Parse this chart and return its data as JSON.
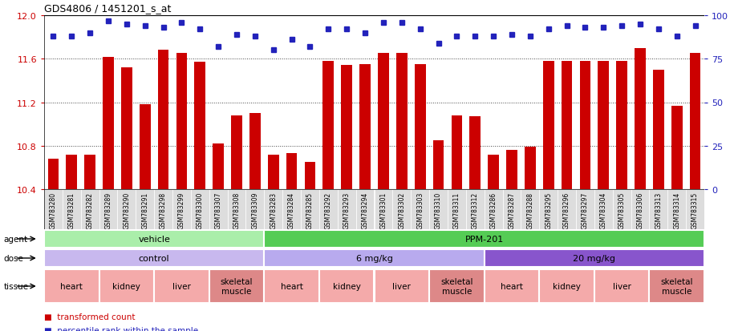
{
  "title": "GDS4806 / 1451201_s_at",
  "ylim_left": [
    10.4,
    12.0
  ],
  "ylim_right": [
    0,
    100
  ],
  "yticks_left": [
    10.4,
    10.8,
    11.2,
    11.6,
    12.0
  ],
  "yticks_right": [
    0,
    25,
    50,
    75,
    100
  ],
  "bar_color": "#cc0000",
  "dot_color": "#2222bb",
  "sample_ids": [
    "GSM783280",
    "GSM783281",
    "GSM783282",
    "GSM783289",
    "GSM783290",
    "GSM783291",
    "GSM783298",
    "GSM783299",
    "GSM783300",
    "GSM783307",
    "GSM783308",
    "GSM783309",
    "GSM783283",
    "GSM783284",
    "GSM783285",
    "GSM783292",
    "GSM783293",
    "GSM783294",
    "GSM783301",
    "GSM783302",
    "GSM783303",
    "GSM783310",
    "GSM783311",
    "GSM783312",
    "GSM783286",
    "GSM783287",
    "GSM783288",
    "GSM783295",
    "GSM783296",
    "GSM783297",
    "GSM783304",
    "GSM783305",
    "GSM783306",
    "GSM783313",
    "GSM783314",
    "GSM783315"
  ],
  "bar_values": [
    10.68,
    10.72,
    10.72,
    11.62,
    11.52,
    11.18,
    11.68,
    11.65,
    11.57,
    10.82,
    11.08,
    11.1,
    10.72,
    10.73,
    10.65,
    11.58,
    11.54,
    11.55,
    11.65,
    11.65,
    11.55,
    10.85,
    11.08,
    11.07,
    10.72,
    10.76,
    10.79,
    11.58,
    11.58,
    11.58,
    11.58,
    11.58,
    11.7,
    11.5,
    11.17,
    11.65
  ],
  "percentile_values": [
    88,
    88,
    90,
    97,
    95,
    94,
    93,
    96,
    92,
    82,
    89,
    88,
    80,
    86,
    82,
    92,
    92,
    90,
    96,
    96,
    92,
    84,
    88,
    88,
    88,
    89,
    88,
    92,
    94,
    93,
    93,
    94,
    95,
    92,
    88,
    94
  ],
  "agent_groups": [
    {
      "label": "vehicle",
      "start": 0,
      "end": 12,
      "color": "#aaeeaa"
    },
    {
      "label": "PPM-201",
      "start": 12,
      "end": 36,
      "color": "#55cc55"
    }
  ],
  "dose_groups": [
    {
      "label": "control",
      "start": 0,
      "end": 12,
      "color": "#c8b8ee"
    },
    {
      "label": "6 mg/kg",
      "start": 12,
      "end": 24,
      "color": "#b8aaee"
    },
    {
      "label": "20 mg/kg",
      "start": 24,
      "end": 36,
      "color": "#8855cc"
    }
  ],
  "tissue_groups": [
    {
      "label": "heart",
      "start": 0,
      "end": 3,
      "color": "#f4aaaa"
    },
    {
      "label": "kidney",
      "start": 3,
      "end": 6,
      "color": "#f4aaaa"
    },
    {
      "label": "liver",
      "start": 6,
      "end": 9,
      "color": "#f4aaaa"
    },
    {
      "label": "skeletal\nmuscle",
      "start": 9,
      "end": 12,
      "color": "#dd8888"
    },
    {
      "label": "heart",
      "start": 12,
      "end": 15,
      "color": "#f4aaaa"
    },
    {
      "label": "kidney",
      "start": 15,
      "end": 18,
      "color": "#f4aaaa"
    },
    {
      "label": "liver",
      "start": 18,
      "end": 21,
      "color": "#f4aaaa"
    },
    {
      "label": "skeletal\nmuscle",
      "start": 21,
      "end": 24,
      "color": "#dd8888"
    },
    {
      "label": "heart",
      "start": 24,
      "end": 27,
      "color": "#f4aaaa"
    },
    {
      "label": "kidney",
      "start": 27,
      "end": 30,
      "color": "#f4aaaa"
    },
    {
      "label": "liver",
      "start": 30,
      "end": 33,
      "color": "#f4aaaa"
    },
    {
      "label": "skeletal\nmuscle",
      "start": 33,
      "end": 36,
      "color": "#dd8888"
    }
  ],
  "bg_color": "#ffffff",
  "axis_color_left": "#cc0000",
  "axis_color_right": "#2222bb",
  "xtick_bg": "#dddddd"
}
